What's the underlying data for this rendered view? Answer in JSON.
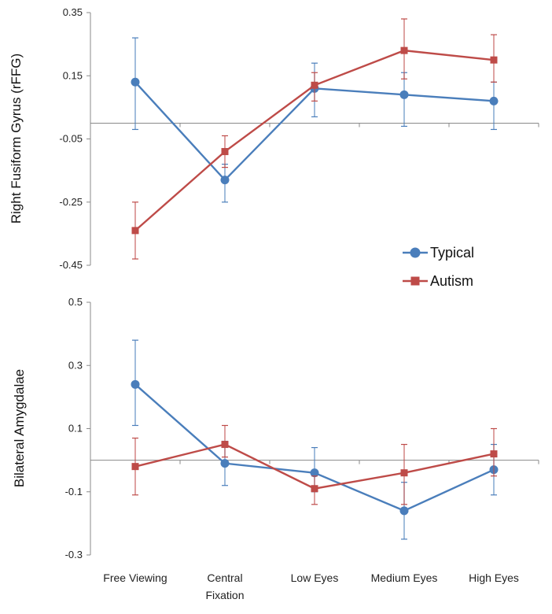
{
  "chart_data": [
    {
      "type": "line",
      "ylabel": "Right Fusiform Gyrus (rFFG)",
      "ylim": [
        -0.45,
        0.35
      ],
      "yticks": [
        "0.35",
        "0.15",
        "-0.05",
        "-0.25",
        "-0.45"
      ],
      "categories": [
        "Free Viewing",
        "Central Fixation",
        "Low Eyes",
        "Medium Eyes",
        "High Eyes"
      ],
      "series": [
        {
          "name": "Typical",
          "color": "#4a7ebb",
          "marker": "circle",
          "values": [
            0.13,
            -0.18,
            0.11,
            0.09,
            0.07
          ],
          "err_low": [
            -0.02,
            -0.25,
            0.02,
            -0.01,
            -0.02
          ],
          "err_high": [
            0.27,
            -0.13,
            0.19,
            0.16,
            0.13
          ]
        },
        {
          "name": "Autism",
          "color": "#be4b48",
          "marker": "square",
          "values": [
            -0.34,
            -0.09,
            0.12,
            0.23,
            0.2
          ],
          "err_low": [
            -0.43,
            -0.14,
            0.07,
            0.14,
            0.13
          ],
          "err_high": [
            -0.25,
            -0.04,
            0.16,
            0.33,
            0.28
          ]
        }
      ],
      "legend": [
        "Typical",
        "Autism"
      ],
      "legend_position": "bottom-right"
    },
    {
      "type": "line",
      "ylabel": "Bilateral Amygdalae",
      "ylim": [
        -0.3,
        0.5
      ],
      "yticks": [
        "0.5",
        "0.3",
        "0.1",
        "-0.1",
        "-0.3"
      ],
      "categories": [
        "Free Viewing",
        "Central Fixation",
        "Low Eyes",
        "Medium Eyes",
        "High Eyes"
      ],
      "category_labels": [
        [
          "Free Viewing"
        ],
        [
          "Central",
          "Fixation"
        ],
        [
          "Low Eyes"
        ],
        [
          "Medium Eyes"
        ],
        [
          "High Eyes"
        ]
      ],
      "series": [
        {
          "name": "Typical",
          "color": "#4a7ebb",
          "marker": "circle",
          "values": [
            0.24,
            -0.01,
            -0.04,
            -0.16,
            -0.03
          ],
          "err_low": [
            0.11,
            -0.08,
            -0.1,
            -0.25,
            -0.11
          ],
          "err_high": [
            0.38,
            0.06,
            0.04,
            -0.07,
            0.05
          ]
        },
        {
          "name": "Autism",
          "color": "#be4b48",
          "marker": "square",
          "values": [
            -0.02,
            0.05,
            -0.09,
            -0.04,
            0.02
          ],
          "err_low": [
            -0.11,
            0.01,
            -0.14,
            -0.14,
            -0.05
          ],
          "err_high": [
            0.07,
            0.11,
            -0.05,
            0.05,
            0.1
          ]
        }
      ]
    }
  ]
}
